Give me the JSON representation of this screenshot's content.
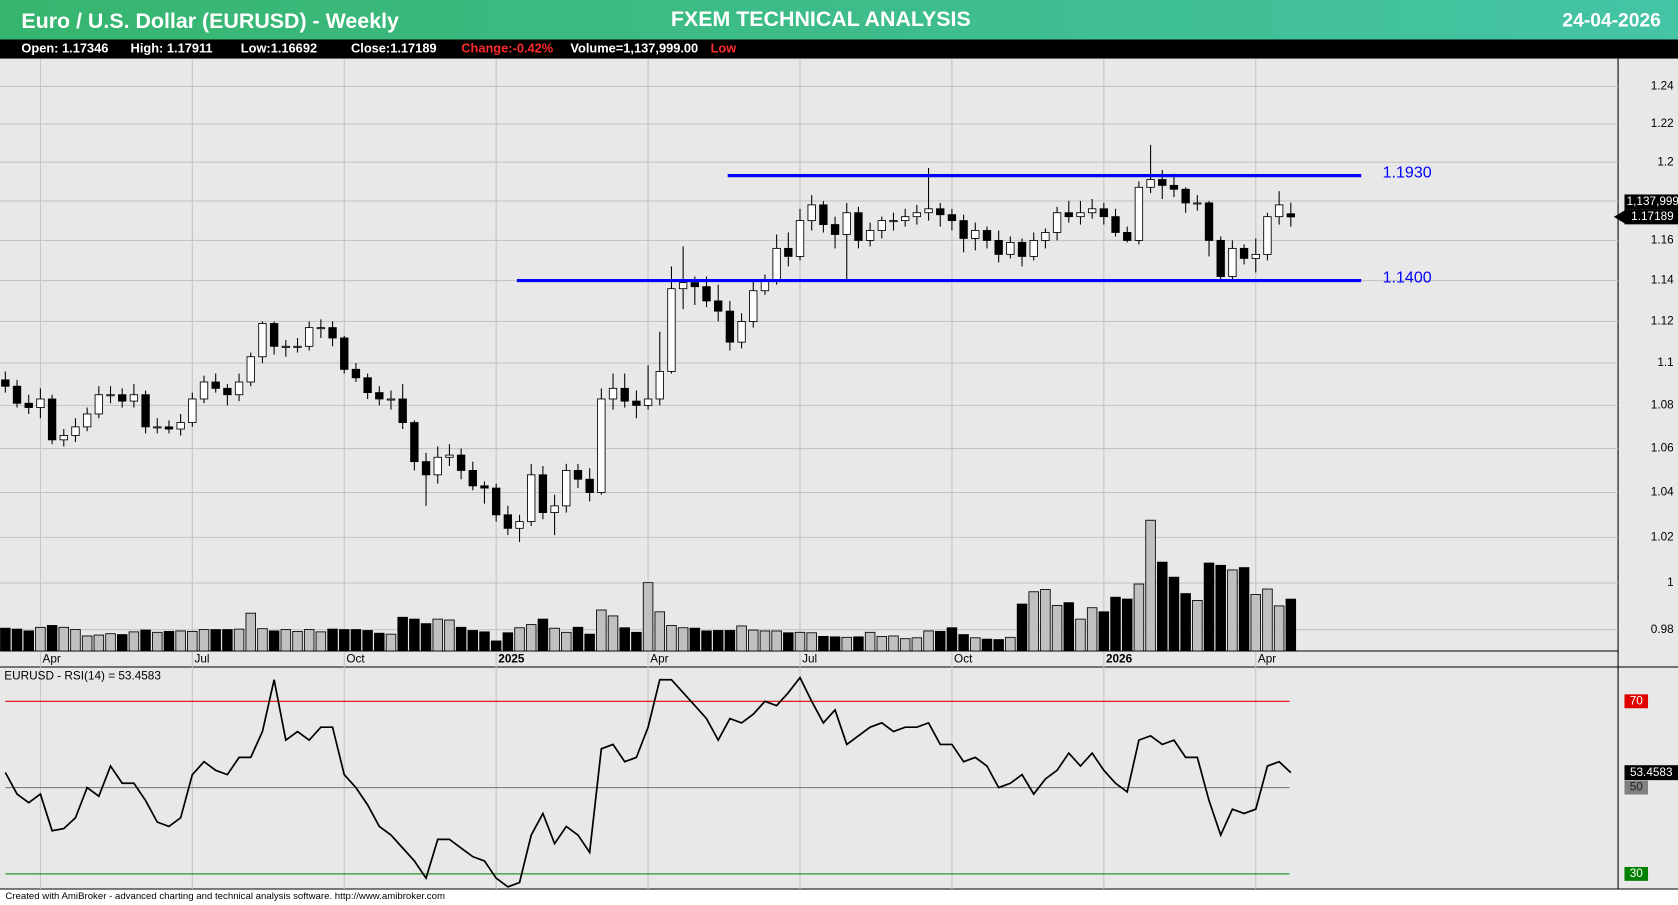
{
  "header": {
    "title": "Euro / U.S. Dollar (EURUSD) - Weekly",
    "brand": "FXEM TECHNICAL ANALYSIS",
    "date": "24-04-2026"
  },
  "info_bar": [
    "Open: 1.17346",
    "High: 1.17911",
    "Low:1.16692",
    "Close:1.17189",
    "Change:-0.42%",
    "Volume=1,137,999.00",
    "Low"
  ],
  "chart_data": [
    {
      "type": "candlestick",
      "categories": [
        null,
        null,
        null,
        "Apr",
        null,
        null,
        null,
        null,
        null,
        null,
        null,
        null,
        null,
        null,
        null,
        null,
        "Jul",
        null,
        null,
        null,
        null,
        null,
        null,
        null,
        null,
        null,
        null,
        null,
        null,
        "Oct",
        null,
        null,
        null,
        null,
        null,
        null,
        null,
        null,
        null,
        null,
        null,
        null,
        "2025",
        null,
        null,
        null,
        null,
        null,
        null,
        null,
        null,
        null,
        null,
        null,
        null,
        "Apr",
        null,
        null,
        null,
        null,
        null,
        null,
        null,
        null,
        null,
        null,
        null,
        null,
        "Jul",
        null,
        null,
        null,
        null,
        null,
        null,
        null,
        null,
        null,
        null,
        null,
        null,
        "Oct",
        null,
        null,
        null,
        null,
        null,
        null,
        null,
        null,
        null,
        null,
        null,
        null,
        "2026",
        null,
        null,
        null,
        null,
        null,
        null,
        null,
        null,
        null,
        null,
        null,
        null,
        "Apr",
        null,
        null,
        null
      ],
      "open": [
        1.092,
        1.089,
        1.081,
        1.079,
        1.083,
        1.064,
        1.066,
        1.07,
        1.076,
        1.085,
        1.085,
        1.082,
        1.085,
        1.07,
        1.07,
        1.069,
        1.072,
        1.083,
        1.091,
        1.088,
        1.085,
        1.091,
        1.103,
        1.119,
        1.108,
        1.108,
        1.108,
        1.117,
        1.117,
        1.112,
        1.097,
        1.093,
        1.086,
        1.083,
        1.083,
        1.072,
        1.054,
        1.048,
        1.056,
        1.057,
        1.05,
        1.043,
        1.042,
        1.03,
        1.024,
        1.027,
        1.048,
        1.031,
        1.034,
        1.05,
        1.046,
        1.04,
        1.083,
        1.088,
        1.082,
        1.08,
        1.083,
        1.096,
        1.136,
        1.139,
        1.137,
        1.13,
        1.125,
        1.11,
        1.12,
        1.135,
        1.14,
        1.156,
        1.152,
        1.17,
        1.178,
        1.168,
        1.163,
        1.174,
        1.16,
        1.165,
        1.17,
        1.17,
        1.172,
        1.174,
        1.176,
        1.173,
        1.17,
        1.161,
        1.165,
        1.16,
        1.153,
        1.159,
        1.152,
        1.16,
        1.164,
        1.174,
        1.172,
        1.174,
        1.176,
        1.172,
        1.164,
        1.16,
        1.187,
        1.191,
        1.188,
        1.186,
        1.179,
        1.179,
        1.16,
        1.142,
        1.156,
        1.151,
        1.153,
        1.172,
        1.17346
      ],
      "high": [
        1.096,
        1.092,
        1.085,
        1.088,
        1.085,
        1.069,
        1.074,
        1.079,
        1.089,
        1.089,
        1.088,
        1.09,
        1.087,
        1.074,
        1.073,
        1.076,
        1.086,
        1.094,
        1.095,
        1.09,
        1.095,
        1.105,
        1.12,
        1.12,
        1.111,
        1.112,
        1.12,
        1.121,
        1.12,
        1.113,
        1.1,
        1.095,
        1.089,
        1.087,
        1.09,
        1.073,
        1.058,
        1.061,
        1.062,
        1.06,
        1.054,
        1.045,
        1.044,
        1.034,
        1.03,
        1.053,
        1.052,
        1.039,
        1.053,
        1.053,
        1.051,
        1.088,
        1.095,
        1.095,
        1.087,
        1.099,
        1.115,
        1.147,
        1.157,
        1.142,
        1.142,
        1.138,
        1.13,
        1.124,
        1.14,
        1.143,
        1.163,
        1.164,
        1.176,
        1.183,
        1.18,
        1.172,
        1.179,
        1.177,
        1.169,
        1.172,
        1.174,
        1.176,
        1.178,
        1.197,
        1.179,
        1.176,
        1.173,
        1.169,
        1.167,
        1.165,
        1.162,
        1.161,
        1.164,
        1.166,
        1.177,
        1.18,
        1.18,
        1.181,
        1.179,
        1.176,
        1.167,
        1.19,
        1.209,
        1.196,
        1.194,
        1.187,
        1.183,
        1.18,
        1.162,
        1.16,
        1.158,
        1.161,
        1.174,
        1.185,
        1.17911
      ],
      "low": [
        1.086,
        1.079,
        1.076,
        1.074,
        1.062,
        1.061,
        1.063,
        1.068,
        1.074,
        1.081,
        1.079,
        1.079,
        1.067,
        1.067,
        1.067,
        1.066,
        1.07,
        1.081,
        1.086,
        1.08,
        1.082,
        1.089,
        1.1,
        1.104,
        1.103,
        1.105,
        1.106,
        1.112,
        1.108,
        1.095,
        1.091,
        1.083,
        1.08,
        1.078,
        1.069,
        1.05,
        1.034,
        1.044,
        1.052,
        1.046,
        1.041,
        1.035,
        1.027,
        1.021,
        1.018,
        1.025,
        1.028,
        1.021,
        1.031,
        1.042,
        1.036,
        1.039,
        1.078,
        1.079,
        1.074,
        1.078,
        1.08,
        1.095,
        1.126,
        1.128,
        1.127,
        1.12,
        1.106,
        1.107,
        1.117,
        1.133,
        1.138,
        1.147,
        1.15,
        1.165,
        1.164,
        1.156,
        1.14,
        1.156,
        1.157,
        1.161,
        1.165,
        1.167,
        1.168,
        1.17,
        1.167,
        1.165,
        1.154,
        1.155,
        1.156,
        1.149,
        1.151,
        1.147,
        1.15,
        1.156,
        1.16,
        1.169,
        1.168,
        1.171,
        1.168,
        1.162,
        1.159,
        1.158,
        1.184,
        1.181,
        1.182,
        1.174,
        1.175,
        1.152,
        1.14,
        1.14,
        1.148,
        1.144,
        1.15,
        1.168,
        1.16692
      ],
      "close": [
        1.089,
        1.081,
        1.079,
        1.083,
        1.064,
        1.066,
        1.07,
        1.076,
        1.085,
        1.085,
        1.082,
        1.085,
        1.07,
        1.07,
        1.069,
        1.072,
        1.083,
        1.091,
        1.088,
        1.085,
        1.091,
        1.103,
        1.119,
        1.108,
        1.108,
        1.108,
        1.117,
        1.117,
        1.112,
        1.097,
        1.093,
        1.086,
        1.083,
        1.083,
        1.072,
        1.054,
        1.048,
        1.056,
        1.057,
        1.05,
        1.043,
        1.042,
        1.03,
        1.024,
        1.027,
        1.048,
        1.031,
        1.034,
        1.05,
        1.046,
        1.04,
        1.083,
        1.088,
        1.082,
        1.08,
        1.083,
        1.096,
        1.136,
        1.139,
        1.137,
        1.13,
        1.125,
        1.11,
        1.12,
        1.135,
        1.14,
        1.156,
        1.152,
        1.17,
        1.178,
        1.168,
        1.163,
        1.174,
        1.16,
        1.165,
        1.17,
        1.17,
        1.172,
        1.174,
        1.176,
        1.173,
        1.17,
        1.161,
        1.165,
        1.16,
        1.153,
        1.159,
        1.152,
        1.16,
        1.164,
        1.174,
        1.172,
        1.174,
        1.176,
        1.172,
        1.164,
        1.16,
        1.187,
        1.191,
        1.188,
        1.186,
        1.179,
        1.179,
        1.16,
        1.142,
        1.156,
        1.151,
        1.153,
        1.172,
        1.178,
        1.17189
      ],
      "up_color": "#ffffff",
      "down_color": "#000000",
      "ylim": [
        0.971,
        1.255
      ],
      "yticks": [
        0.98,
        1,
        1.02,
        1.04,
        1.06,
        1.08,
        1.1,
        1.12,
        1.14,
        1.16,
        1.18,
        1.2,
        1.22,
        1.24
      ],
      "log_scale": true,
      "grid": true,
      "annotations": [
        {
          "value": 1.193,
          "label": "1.1930"
        },
        {
          "value": 1.14,
          "label": "1.1400"
        }
      ],
      "annotation_color": "#0000ff"
    },
    {
      "type": "bar",
      "values": [
        500000,
        480000,
        440000,
        520000,
        560000,
        520000,
        470000,
        330000,
        350000,
        380000,
        360000,
        420000,
        460000,
        410000,
        430000,
        440000,
        430000,
        470000,
        470000,
        470000,
        480000,
        830000,
        490000,
        440000,
        470000,
        430000,
        470000,
        420000,
        480000,
        470000,
        470000,
        450000,
        390000,
        370000,
        740000,
        700000,
        600000,
        700000,
        680000,
        520000,
        450000,
        420000,
        220000,
        400000,
        510000,
        580000,
        700000,
        500000,
        410000,
        520000,
        370000,
        900000,
        770000,
        510000,
        410000,
        1500000,
        860000,
        560000,
        510000,
        500000,
        440000,
        450000,
        450000,
        550000,
        460000,
        440000,
        440000,
        400000,
        410000,
        400000,
        320000,
        310000,
        300000,
        310000,
        410000,
        320000,
        330000,
        270000,
        290000,
        440000,
        430000,
        510000,
        360000,
        290000,
        260000,
        250000,
        300000,
        1030000,
        1300000,
        1350000,
        1000000,
        1060000,
        700000,
        950000,
        860000,
        1180000,
        1140000,
        1470000,
        2870000,
        1950000,
        1620000,
        1260000,
        1110000,
        1930000,
        1880000,
        1780000,
        1830000,
        1240000,
        1360000,
        990000,
        1137999
      ],
      "ylim": [
        0,
        13000000
      ],
      "last_label": "1,137,999",
      "up_color": "#c0c0c0",
      "down_color": "#000000"
    },
    {
      "type": "line",
      "title": "EURUSD - RSI(14) = 53.4583",
      "values": [
        53.5,
        48.5,
        46.5,
        48.5,
        40,
        40.5,
        43,
        50,
        48,
        55,
        51,
        51,
        47,
        42,
        41,
        43,
        53,
        56,
        54,
        53,
        57,
        57,
        63,
        75,
        61,
        63,
        61,
        64,
        64,
        53,
        50,
        46,
        41,
        39,
        36,
        33,
        29,
        38,
        38,
        36,
        34,
        33,
        29,
        27,
        28,
        39,
        44,
        37,
        41,
        39,
        35,
        59,
        60,
        56,
        57,
        64,
        75,
        75,
        72,
        69,
        66,
        61,
        66,
        65,
        67,
        70,
        69,
        72,
        75.5,
        70,
        65,
        68,
        60,
        62,
        64,
        65,
        63,
        64,
        64,
        65,
        60,
        60,
        56,
        57,
        55,
        50,
        51,
        53,
        48.5,
        52,
        54,
        58,
        55,
        58,
        54,
        51,
        49,
        61,
        62,
        60,
        61,
        57,
        57,
        47,
        39,
        45,
        44,
        45,
        55,
        56,
        53.4583
      ],
      "color": "#000000",
      "ylim": [
        26.5,
        77.7
      ],
      "yticks": [
        30,
        50,
        70
      ],
      "ytick_colors": [
        "#008000",
        "#808080",
        "#e00000"
      ]
    }
  ],
  "footer": "Created with AmiBroker - advanced charting and technical analysis software. http://www.amibroker.com"
}
